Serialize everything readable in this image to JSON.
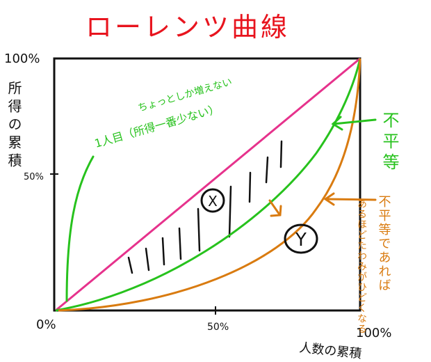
{
  "title": "ローレンツ曲線",
  "axes": {
    "y_label": "所得の累積",
    "x_label": "人数の累積",
    "origin": "0%",
    "x_mid": "50%",
    "x_max": "100%",
    "y_mid": "50%",
    "y_max": "100%"
  },
  "annotations": {
    "green_top": "ちょっとしか増えない",
    "green_bottom": "1人目（所得一番少ない）",
    "inequality": "不平等",
    "orange_note_title": "不平等であれば",
    "orange_note_body": "あるほどたわみがひどくなる",
    "area_x": "X",
    "area_y": "Y"
  },
  "colors": {
    "title": "#e8141e",
    "equality_line": "#e6328c",
    "green_curve": "#27c21d",
    "orange_curve": "#d97b10",
    "ink": "#111111"
  }
}
